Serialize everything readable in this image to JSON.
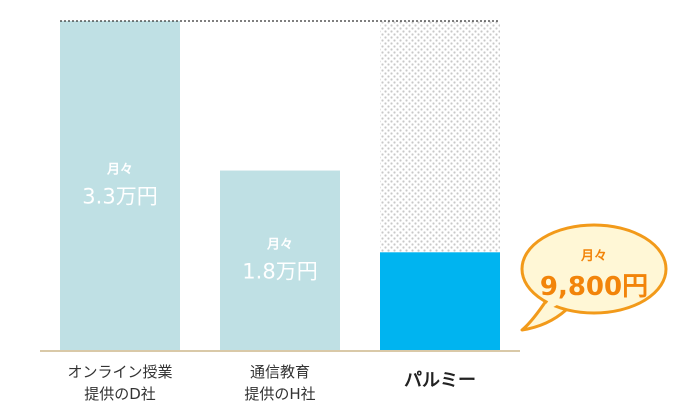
{
  "chart_data": {
    "type": "bar",
    "categories": [
      [
        "オンライン授業",
        "提供のD社"
      ],
      [
        "通信教育",
        "提供のH社"
      ],
      [
        "パルミー"
      ]
    ],
    "values": [
      33000,
      18000,
      9800
    ],
    "value_labels": [
      {
        "prefix": "月々",
        "text": "3.3万円"
      },
      {
        "prefix": "月々",
        "text": "1.8万円"
      },
      {
        "prefix": "月々",
        "text": "9,800円"
      }
    ],
    "ylim": [
      0,
      33000
    ],
    "title": "",
    "xlabel": "",
    "ylabel": "",
    "grid": false,
    "colors": {
      "competitor_bar": "#bfe0e4",
      "highlight_bar": "#00b4f0",
      "dotted_fill": "#c8c8c8",
      "baseline": "#d9c9a8",
      "bubble_fill": "#fff7d6",
      "bubble_stroke": "#f29a1a",
      "bubble_text": "#f2840a"
    }
  }
}
